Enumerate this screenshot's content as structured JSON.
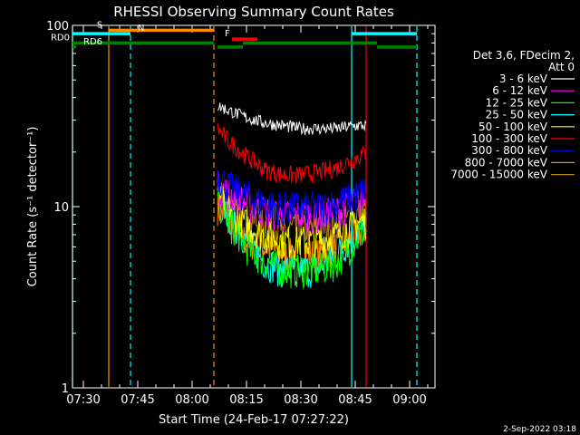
{
  "chart_data": {
    "type": "line",
    "title": "RHESSI Observing Summary Count Rates",
    "xlabel": "Start Time (24-Feb-17 07:27:22)",
    "ylabel": "Count Rate (s⁻¹ detector⁻¹)",
    "y_scale": "log",
    "ylim": [
      1,
      100
    ],
    "xlim": [
      "07:27",
      "09:07"
    ],
    "y_ticks": [
      {
        "value": 1,
        "label": "1"
      },
      {
        "value": 10,
        "label": "10"
      },
      {
        "value": 100,
        "label": "100"
      }
    ],
    "x_ticks": [
      {
        "value": "07:30",
        "label": "07:30"
      },
      {
        "value": "07:45",
        "label": "07:45"
      },
      {
        "value": "08:00",
        "label": "08:00"
      },
      {
        "value": "08:15",
        "label": "08:15"
      },
      {
        "value": "08:30",
        "label": "08:30"
      },
      {
        "value": "08:45",
        "label": "08:45"
      },
      {
        "value": "09:00",
        "label": "09:00"
      }
    ],
    "legend": {
      "placement": "right",
      "header": [
        "Det 3,6, FDecim 2,",
        "Att 0"
      ]
    },
    "series": [
      {
        "name": "3 - 6 keV",
        "color": "#ffffff",
        "x": [
          "08:07",
          "08:10",
          "08:15",
          "08:20",
          "08:25",
          "08:30",
          "08:35",
          "08:40",
          "08:45",
          "08:48"
        ],
        "y": [
          36,
          34,
          31,
          29,
          28,
          27,
          27,
          27,
          28,
          28
        ]
      },
      {
        "name": "6 - 12 keV",
        "color": "#ff00ff",
        "x": [
          "08:07",
          "08:10",
          "08:15",
          "08:20",
          "08:25",
          "08:30",
          "08:35",
          "08:40",
          "08:45",
          "08:48"
        ],
        "y": [
          13,
          12,
          10.5,
          9.5,
          9,
          9,
          9,
          9.5,
          10.5,
          11
        ]
      },
      {
        "name": "12 - 25 keV",
        "color": "#00ff00",
        "x": [
          "08:07",
          "08:10",
          "08:15",
          "08:20",
          "08:25",
          "08:30",
          "08:35",
          "08:40",
          "08:45",
          "08:48"
        ],
        "y": [
          11,
          8.5,
          6,
          5,
          4.5,
          4.5,
          4.5,
          5,
          6.5,
          7.5
        ]
      },
      {
        "name": "25 - 50 keV",
        "color": "#00ffff",
        "x": [
          "08:07",
          "08:10",
          "08:15",
          "08:20",
          "08:25",
          "08:30",
          "08:35",
          "08:40",
          "08:45",
          "08:48"
        ],
        "y": [
          12,
          9,
          6.5,
          5,
          4.5,
          4.5,
          4.5,
          5.5,
          7,
          8
        ]
      },
      {
        "name": "50 - 100 keV",
        "color": "#ffff00",
        "x": [
          "08:07",
          "08:10",
          "08:15",
          "08:20",
          "08:25",
          "08:30",
          "08:35",
          "08:40",
          "08:45",
          "08:48"
        ],
        "y": [
          12,
          10,
          8,
          7,
          6.5,
          6.5,
          6.5,
          7,
          8,
          8.5
        ]
      },
      {
        "name": "100 - 300 keV",
        "color": "#ff0000",
        "x": [
          "08:07",
          "08:10",
          "08:15",
          "08:20",
          "08:25",
          "08:30",
          "08:35",
          "08:40",
          "08:45",
          "08:48"
        ],
        "y": [
          27,
          23,
          19,
          16,
          15,
          15,
          15.5,
          16.5,
          18.5,
          20
        ]
      },
      {
        "name": "300 - 800 keV",
        "color": "#0000ff",
        "x": [
          "08:07",
          "08:10",
          "08:15",
          "08:20",
          "08:25",
          "08:30",
          "08:35",
          "08:40",
          "08:45",
          "08:48"
        ],
        "y": [
          15,
          13,
          11.5,
          10.5,
          10,
          10,
          10,
          10.5,
          11.5,
          12.5
        ]
      },
      {
        "name": "800 - 7000 keV",
        "color": "#ff8c00",
        "x": [
          "08:07",
          "08:10",
          "08:15",
          "08:20",
          "08:25",
          "08:30",
          "08:35",
          "08:40",
          "08:45",
          "08:48"
        ],
        "y": [
          10,
          8,
          6.5,
          6,
          5.5,
          5.5,
          5.5,
          6,
          7,
          7.5
        ]
      },
      {
        "name": "7000 - 15000 keV",
        "color": "#b8860b",
        "x": [
          "08:07",
          "08:10",
          "08:15",
          "08:20",
          "08:25",
          "08:30",
          "08:35",
          "08:40",
          "08:45",
          "08:48"
        ],
        "y": [
          12,
          10,
          8.5,
          8,
          7.5,
          7.5,
          7.5,
          8,
          9,
          9.5
        ]
      }
    ],
    "vlines": [
      {
        "x": "07:27",
        "color": "#00ffff",
        "style": "solid"
      },
      {
        "x": "07:37",
        "color": "#ff8c00",
        "style": "solid"
      },
      {
        "x": "07:43",
        "color": "#00ffff",
        "style": "dashed"
      },
      {
        "x": "08:06",
        "color": "#ff8c00",
        "style": "dashed"
      },
      {
        "x": "08:44",
        "color": "#00ffff",
        "style": "solid"
      },
      {
        "x": "08:48",
        "color": "#ff0000",
        "style": "solid"
      },
      {
        "x": "09:02",
        "color": "#00ffff",
        "style": "dashed"
      }
    ],
    "flag_bars": [
      {
        "label": "S",
        "color": "#ff8c00",
        "y": 94,
        "x0": "07:37",
        "x1": "08:06"
      },
      {
        "label": "N",
        "color": "#00ffff",
        "y": 90,
        "x0": "07:27",
        "x1": "07:43",
        "label_x": "07:45"
      },
      {
        "label": "",
        "color": "#00ffff",
        "y": 90,
        "x0": "08:44",
        "x1": "09:02"
      },
      {
        "label": "F",
        "color": "#ff0000",
        "y": 84,
        "x0": "08:11",
        "x1": "08:18",
        "label_x": "08:09"
      },
      {
        "label": "RD0",
        "color": "#008000",
        "y": 80,
        "x0": "07:27",
        "x1": "08:06",
        "label_left": true
      },
      {
        "label": "",
        "color": "#008000",
        "y": 80,
        "x0": "08:14",
        "x1": "08:51"
      },
      {
        "label": "RD6",
        "color": "#008000",
        "y": 76,
        "x0": "07:27",
        "x1": "07:28",
        "label_x": "07:30"
      },
      {
        "label": "",
        "color": "#008000",
        "y": 76,
        "x0": "08:07",
        "x1": "08:14"
      },
      {
        "label": "",
        "color": "#008000",
        "y": 76,
        "x0": "08:51",
        "x1": "09:02"
      }
    ]
  },
  "footer": {
    "date_stamp": "2-Sep-2022 03:18"
  }
}
